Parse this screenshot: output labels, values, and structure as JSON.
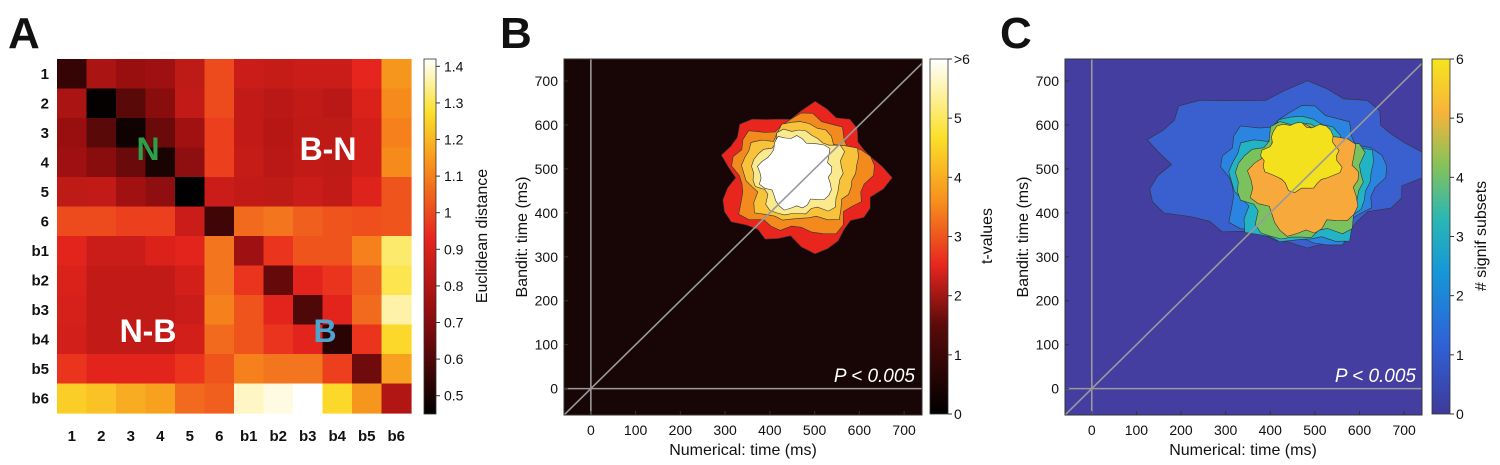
{
  "figure": {
    "panels": [
      {
        "letter": "A"
      },
      {
        "letter": "B"
      },
      {
        "letter": "C"
      }
    ]
  },
  "chart_data": [
    {
      "type": "heatmap",
      "panel": "A",
      "labels": [
        "1",
        "2",
        "3",
        "4",
        "5",
        "6",
        "b1",
        "b2",
        "b3",
        "b4",
        "b5",
        "b6"
      ],
      "matrix": [
        [
          0.55,
          0.78,
          0.74,
          0.75,
          0.83,
          1.0,
          0.86,
          0.85,
          0.86,
          0.86,
          0.93,
          1.14
        ],
        [
          0.78,
          0.46,
          0.62,
          0.71,
          0.84,
          1.0,
          0.84,
          0.82,
          0.84,
          0.82,
          0.9,
          1.12
        ],
        [
          0.74,
          0.62,
          0.48,
          0.65,
          0.76,
          0.98,
          0.84,
          0.81,
          0.83,
          0.83,
          0.88,
          1.1
        ],
        [
          0.75,
          0.71,
          0.65,
          0.5,
          0.72,
          0.98,
          0.85,
          0.82,
          0.84,
          0.83,
          0.88,
          1.12
        ],
        [
          0.83,
          0.84,
          0.76,
          0.72,
          0.45,
          0.86,
          0.84,
          0.83,
          0.86,
          0.84,
          0.91,
          1.02
        ],
        [
          1.0,
          1.0,
          0.98,
          0.98,
          0.86,
          0.57,
          1.06,
          1.08,
          1.04,
          1.02,
          1.01,
          1.02
        ],
        [
          0.92,
          0.86,
          0.86,
          0.9,
          0.92,
          1.08,
          0.75,
          0.96,
          1.02,
          1.02,
          1.1,
          1.32
        ],
        [
          0.9,
          0.84,
          0.84,
          0.84,
          0.88,
          1.08,
          0.96,
          0.64,
          0.92,
          0.96,
          1.04,
          1.3
        ],
        [
          0.89,
          0.84,
          0.84,
          0.84,
          0.86,
          1.1,
          1.02,
          0.92,
          0.6,
          0.92,
          1.06,
          1.36
        ],
        [
          0.88,
          0.84,
          0.84,
          0.84,
          0.88,
          1.06,
          1.02,
          0.96,
          0.92,
          0.53,
          0.96,
          1.26
        ],
        [
          0.96,
          0.92,
          0.92,
          0.92,
          0.96,
          1.02,
          1.1,
          1.08,
          1.08,
          0.98,
          0.66,
          1.16
        ],
        [
          1.24,
          1.22,
          1.18,
          1.16,
          1.06,
          1.04,
          1.38,
          1.4,
          1.42,
          1.26,
          1.14,
          0.8
        ]
      ],
      "colorbar": {
        "label": "Euclidean distance",
        "min": 0.45,
        "max": 1.42,
        "ticks": [
          "0.5",
          "0.6",
          "0.7",
          "0.8",
          "0.9",
          "1",
          "1.1",
          "1.2",
          "1.3",
          "1.4"
        ]
      },
      "annotations": [
        {
          "text": "N",
          "color": "#2e9e48"
        },
        {
          "text": "B-N",
          "color": "#ffffff"
        },
        {
          "text": "N-B",
          "color": "#ffffff"
        },
        {
          "text": "B",
          "color": "#4fa3cf"
        }
      ]
    },
    {
      "type": "heatmap",
      "panel": "B",
      "xlabel": "Numerical: time (ms)",
      "ylabel": "Bandit: time (ms)",
      "xlim": [
        -60,
        740
      ],
      "ylim": [
        -60,
        750
      ],
      "xticks": [
        "0",
        "100",
        "200",
        "300",
        "400",
        "500",
        "600",
        "700"
      ],
      "yticks": [
        "0",
        "100",
        "200",
        "300",
        "400",
        "500",
        "600",
        "700"
      ],
      "note": "P < 0.005",
      "colorbar": {
        "label": "t-values",
        "ticks": [
          "0",
          "1",
          "2",
          "3",
          "4",
          "5",
          ">6"
        ]
      },
      "levels": [
        {
          "t": 2,
          "color": "#e8261e",
          "cx": 470,
          "cy": 480,
          "rx": 175,
          "ry": 155
        },
        {
          "t": 3,
          "color": "#f28a1d",
          "cx": 470,
          "cy": 485,
          "rx": 150,
          "ry": 130
        },
        {
          "t": 4,
          "color": "#f8c33a",
          "cx": 468,
          "cy": 490,
          "rx": 125,
          "ry": 110
        },
        {
          "t": 5,
          "color": "#fbe98e",
          "cx": 465,
          "cy": 490,
          "rx": 100,
          "ry": 95
        },
        {
          "t": 6,
          "color": "#ffffff",
          "cx": 460,
          "cy": 492,
          "rx": 80,
          "ry": 80
        }
      ]
    },
    {
      "type": "heatmap",
      "panel": "C",
      "xlabel": "Numerical: time (ms)",
      "ylabel": "Bandit: time (ms)",
      "xlim": [
        -60,
        740
      ],
      "ylim": [
        -60,
        750
      ],
      "xticks": [
        "0",
        "100",
        "200",
        "300",
        "400",
        "500",
        "600",
        "700"
      ],
      "yticks": [
        "0",
        "100",
        "200",
        "300",
        "400",
        "500",
        "600",
        "700"
      ],
      "note": "P < 0.005",
      "colorbar": {
        "label": "# signif subsets",
        "ticks": [
          "0",
          "1",
          "2",
          "3",
          "4",
          "5",
          "6"
        ]
      },
      "levels": [
        {
          "n": 1,
          "color": "#3a5fcf",
          "cx": 430,
          "cy": 510,
          "rx": 300,
          "ry": 170
        },
        {
          "n": 2,
          "color": "#2a84e0",
          "cx": 470,
          "cy": 480,
          "rx": 175,
          "ry": 150
        },
        {
          "n": 3,
          "color": "#22b3c5",
          "cx": 470,
          "cy": 470,
          "rx": 155,
          "ry": 140
        },
        {
          "n": 4,
          "color": "#79c25e",
          "cx": 470,
          "cy": 470,
          "rx": 140,
          "ry": 130
        },
        {
          "n": 5,
          "color": "#f8a93c",
          "cx": 480,
          "cy": 475,
          "rx": 120,
          "ry": 120
        },
        {
          "n": 6,
          "color": "#f4e11d",
          "cx": 470,
          "cy": 530,
          "rx": 85,
          "ry": 75
        }
      ]
    }
  ]
}
